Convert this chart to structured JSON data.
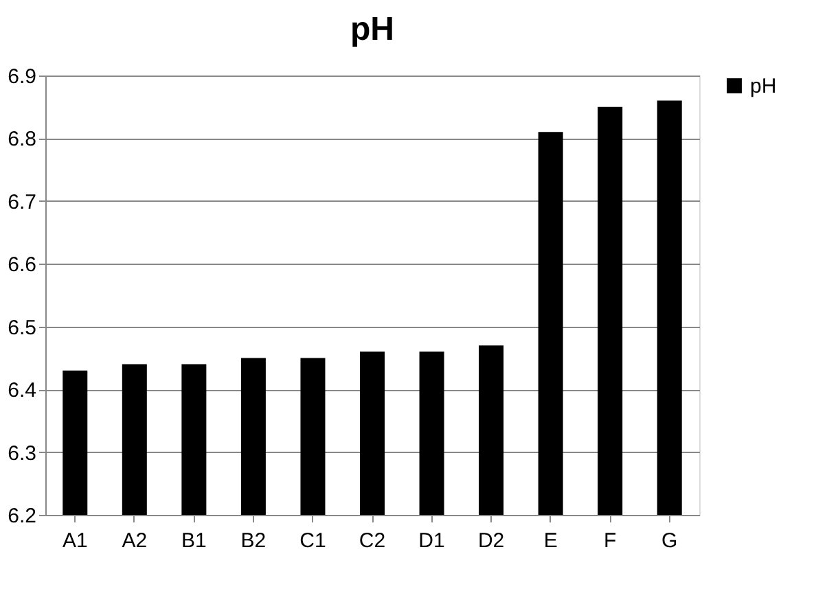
{
  "chart_data": {
    "type": "bar",
    "title": "pH",
    "categories": [
      "A1",
      "A2",
      "B1",
      "B2",
      "C1",
      "C2",
      "D1",
      "D2",
      "E",
      "F",
      "G"
    ],
    "series": [
      {
        "name": "pH",
        "color": "#000000",
        "values": [
          6.43,
          6.44,
          6.44,
          6.45,
          6.45,
          6.46,
          6.46,
          6.47,
          6.81,
          6.85,
          6.86
        ]
      }
    ],
    "ylim": [
      6.2,
      6.9
    ],
    "yticks": [
      6.2,
      6.3,
      6.4,
      6.5,
      6.6,
      6.7,
      6.8,
      6.9
    ],
    "grid": "y",
    "legend": "right"
  }
}
